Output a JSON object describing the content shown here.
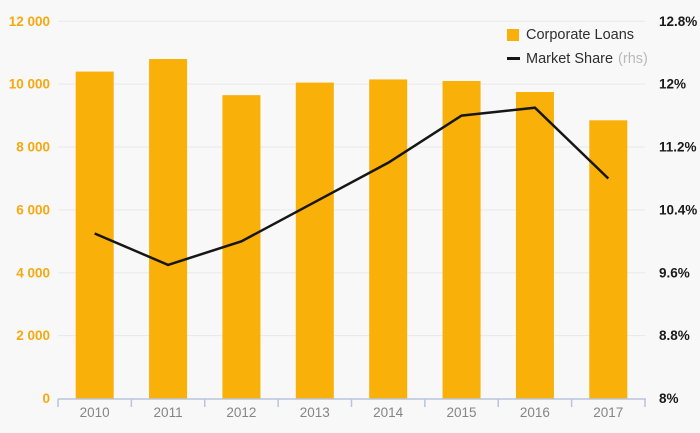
{
  "legend": {
    "items": [
      {
        "label": "Corporate Loans",
        "type": "bar"
      },
      {
        "label": "Market Share",
        "suffix": "(rhs)",
        "type": "line"
      }
    ]
  },
  "colors": {
    "background": "#f8f8f8",
    "bar": "#F9B008",
    "line": "#161616",
    "left_axis_label": "#F6A90F",
    "right_axis_label": "#1a1a1a",
    "x_axis_label": "#858585",
    "gridline": "#e9e9e9",
    "axis_line": "#b9c4de",
    "legend_text": "#2e2e2e",
    "legend_suffix": "#b8b8b8"
  },
  "chart_data": {
    "type": "combo",
    "title": "",
    "categories": [
      "2010",
      "2011",
      "2012",
      "2013",
      "2014",
      "2015",
      "2016",
      "2017"
    ],
    "series": [
      {
        "name": "Corporate Loans",
        "type": "bar",
        "axis": "left",
        "values": [
          10400,
          10800,
          9650,
          10050,
          10150,
          10100,
          9750,
          8850
        ]
      },
      {
        "name": "Market Share (rhs)",
        "type": "line",
        "axis": "right",
        "values": [
          10.1,
          9.7,
          10.0,
          10.5,
          11.0,
          11.6,
          11.7,
          10.8
        ]
      }
    ],
    "left_axis": {
      "min": 0,
      "max": 12000,
      "tick_interval": 2000,
      "tick_labels": [
        "0",
        "2 000",
        "4 000",
        "6 000",
        "8 000",
        "10 000",
        "12 000"
      ]
    },
    "right_axis": {
      "min": 8,
      "max": 12.8,
      "tick_interval": 0.8,
      "tick_labels": [
        "8%",
        "8.8%",
        "9.6%",
        "10.4%",
        "11.2%",
        "12%",
        "12.8%"
      ]
    },
    "grid": true,
    "legend_position": "top-right"
  }
}
